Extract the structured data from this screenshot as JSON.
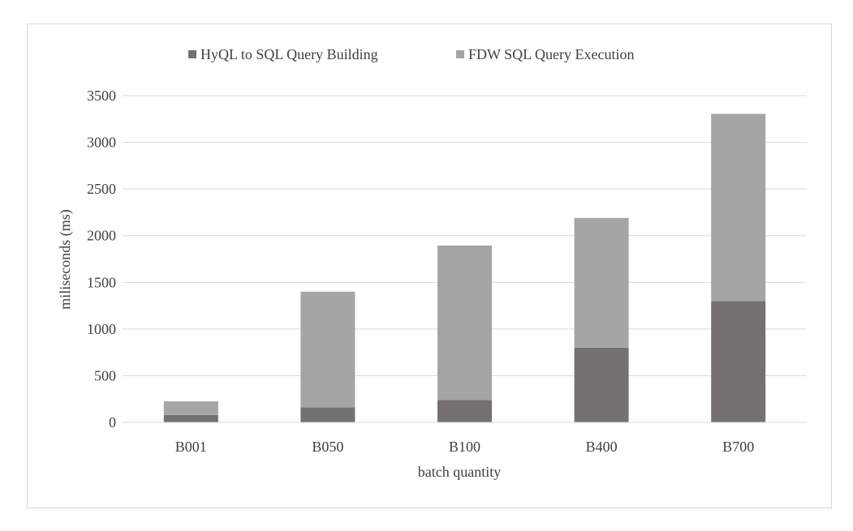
{
  "chart_data": {
    "type": "bar",
    "stacked": true,
    "title": "",
    "xlabel": "batch quantity",
    "ylabel": "miliseconds (ms)",
    "ylim": [
      0,
      3500
    ],
    "yticks": [
      0,
      500,
      1000,
      1500,
      2000,
      2500,
      3000,
      3500
    ],
    "grid": true,
    "legend_position": "top",
    "categories": [
      "B001",
      "B050",
      "B100",
      "B400",
      "B700"
    ],
    "series": [
      {
        "name": "HyQL to SQL Query Building",
        "color": "#767171",
        "values": [
          80,
          160,
          240,
          800,
          1300
        ]
      },
      {
        "name": "FDW SQL Query Execution",
        "color": "#a5a5a5",
        "values": [
          145,
          1240,
          1655,
          1390,
          2005
        ]
      }
    ]
  }
}
